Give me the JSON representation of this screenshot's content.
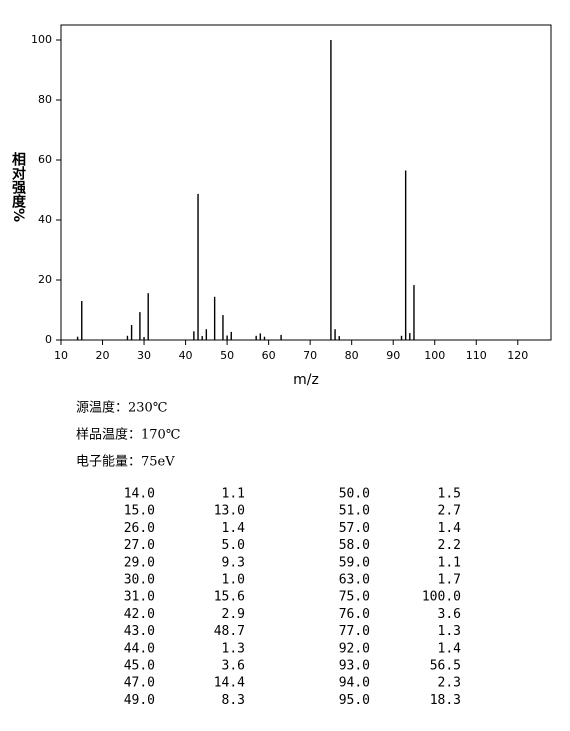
{
  "chart_data": {
    "type": "bar",
    "x_label": "m/z",
    "y_label": "相对强度%",
    "x": [
      14,
      15,
      26,
      27,
      29,
      30,
      31,
      42,
      43,
      44,
      45,
      47,
      49,
      50,
      51,
      57,
      58,
      59,
      63,
      75,
      76,
      77,
      92,
      93,
      94,
      95
    ],
    "x_labels": [
      "14.0",
      "15.0",
      "26.0",
      "27.0",
      "29.0",
      "30.0",
      "31.0",
      "42.0",
      "43.0",
      "44.0",
      "45.0",
      "47.0",
      "49.0",
      "50.0",
      "51.0",
      "57.0",
      "58.0",
      "59.0",
      "63.0",
      "75.0",
      "76.0",
      "77.0",
      "92.0",
      "93.0",
      "94.0",
      "95.0"
    ],
    "values": [
      1.1,
      13.0,
      1.4,
      5.0,
      9.3,
      1.0,
      15.6,
      2.9,
      48.7,
      1.3,
      3.6,
      14.4,
      8.3,
      1.5,
      2.7,
      1.4,
      2.2,
      1.1,
      1.7,
      100.0,
      3.6,
      1.3,
      1.4,
      56.5,
      2.3,
      18.3
    ],
    "value_labels": [
      "1.1",
      "13.0",
      "1.4",
      "5.0",
      "9.3",
      "1.0",
      "15.6",
      "2.9",
      "48.7",
      "1.3",
      "3.6",
      "14.4",
      "8.3",
      "1.5",
      "2.7",
      "1.4",
      "2.2",
      "1.1",
      "1.7",
      "100.0",
      "3.6",
      "1.3",
      "1.4",
      "56.5",
      "2.3",
      "18.3"
    ],
    "color": "#000000",
    "xlim": [
      10,
      128
    ],
    "xticks": [
      10,
      20,
      30,
      40,
      50,
      60,
      70,
      80,
      90,
      100,
      110,
      120
    ],
    "ylim": [
      0,
      105
    ],
    "yticks": [
      0,
      20,
      40,
      60,
      80,
      100
    ]
  },
  "info": [
    "源温度：230℃",
    "样品温度：170℃",
    "电子能量：75eV"
  ]
}
